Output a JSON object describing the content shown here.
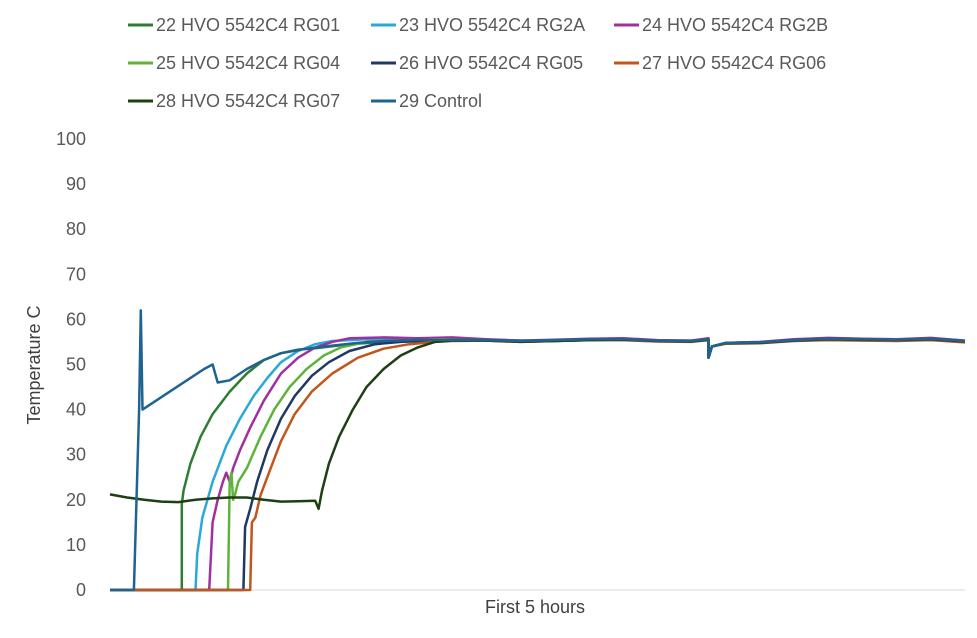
{
  "chart_data": {
    "type": "line",
    "title": "",
    "xlabel": "First 5 hours",
    "ylabel": "Temperature C",
    "xlim": [
      0,
      5
    ],
    "ylim": [
      0,
      100
    ],
    "yticks": [
      0,
      10,
      20,
      30,
      40,
      50,
      60,
      70,
      80,
      90,
      100
    ],
    "grid": false,
    "legend_position": "top",
    "series": [
      {
        "name": "22 HVO 5542C4 RG01",
        "color": "#2e7d32",
        "points": [
          [
            0.0,
            0
          ],
          [
            0.42,
            0
          ],
          [
            0.42,
            19
          ],
          [
            0.43,
            22
          ],
          [
            0.47,
            28
          ],
          [
            0.53,
            34
          ],
          [
            0.6,
            39
          ],
          [
            0.7,
            44
          ],
          [
            0.8,
            48
          ],
          [
            0.9,
            51
          ],
          [
            1.0,
            52.5
          ],
          [
            1.1,
            53.3
          ],
          [
            1.2,
            53.6
          ],
          [
            1.4,
            54.5
          ],
          [
            1.6,
            55
          ],
          [
            1.8,
            55.2
          ],
          [
            2.0,
            55.4
          ],
          [
            2.2,
            55.5
          ],
          [
            2.4,
            55.3
          ],
          [
            2.6,
            55.2
          ],
          [
            2.8,
            55.4
          ],
          [
            3.0,
            55.6
          ],
          [
            3.2,
            55.3
          ],
          [
            3.4,
            55.1
          ],
          [
            3.5,
            55.6
          ],
          [
            3.5,
            51.5
          ],
          [
            3.52,
            54
          ],
          [
            3.6,
            54.8
          ],
          [
            3.8,
            54.9
          ],
          [
            4.0,
            55.3
          ],
          [
            4.2,
            55.6
          ],
          [
            4.4,
            55.5
          ],
          [
            4.6,
            55.5
          ],
          [
            4.8,
            55.6
          ],
          [
            5.0,
            55.2
          ]
        ]
      },
      {
        "name": "23 HVO 5542C4 RG2A",
        "color": "#29a9d6",
        "points": [
          [
            0.0,
            0
          ],
          [
            0.5,
            0
          ],
          [
            0.51,
            8
          ],
          [
            0.54,
            16
          ],
          [
            0.6,
            24
          ],
          [
            0.68,
            32
          ],
          [
            0.76,
            38
          ],
          [
            0.84,
            43
          ],
          [
            0.92,
            47
          ],
          [
            1.0,
            50.5
          ],
          [
            1.1,
            53
          ],
          [
            1.2,
            54.5
          ],
          [
            1.3,
            55.2
          ],
          [
            1.5,
            55.6
          ],
          [
            1.7,
            55.5
          ],
          [
            2.0,
            55.6
          ],
          [
            2.2,
            55.5
          ],
          [
            2.4,
            55.3
          ],
          [
            2.6,
            55.4
          ],
          [
            2.8,
            55.6
          ],
          [
            3.0,
            55.7
          ],
          [
            3.2,
            55.3
          ],
          [
            3.4,
            55.3
          ],
          [
            3.5,
            55.7
          ],
          [
            3.5,
            51.5
          ],
          [
            3.52,
            54
          ],
          [
            3.6,
            54.8
          ],
          [
            3.8,
            54.9
          ],
          [
            4.0,
            55.5
          ],
          [
            4.2,
            55.8
          ],
          [
            4.4,
            55.6
          ],
          [
            4.6,
            55.5
          ],
          [
            4.8,
            55.8
          ],
          [
            5.0,
            55.3
          ]
        ]
      },
      {
        "name": "24 HVO 5542C4 RG2B",
        "color": "#a030a0",
        "points": [
          [
            0.0,
            0
          ],
          [
            0.58,
            0
          ],
          [
            0.6,
            15
          ],
          [
            0.63,
            20
          ],
          [
            0.66,
            24
          ],
          [
            0.68,
            26
          ],
          [
            0.7,
            24
          ],
          [
            0.72,
            27
          ],
          [
            0.76,
            31
          ],
          [
            0.82,
            36
          ],
          [
            0.9,
            42
          ],
          [
            1.0,
            48
          ],
          [
            1.1,
            51.5
          ],
          [
            1.2,
            53.8
          ],
          [
            1.3,
            55
          ],
          [
            1.4,
            55.8
          ],
          [
            1.6,
            56
          ],
          [
            1.8,
            55.8
          ],
          [
            2.0,
            56
          ],
          [
            2.2,
            55.6
          ],
          [
            2.4,
            55.3
          ],
          [
            2.6,
            55.5
          ],
          [
            2.8,
            55.7
          ],
          [
            3.0,
            55.8
          ],
          [
            3.2,
            55.4
          ],
          [
            3.4,
            55.3
          ],
          [
            3.5,
            55.8
          ],
          [
            3.5,
            51.5
          ],
          [
            3.52,
            54
          ],
          [
            3.6,
            54.8
          ],
          [
            3.8,
            55
          ],
          [
            4.0,
            55.6
          ],
          [
            4.2,
            55.9
          ],
          [
            4.4,
            55.7
          ],
          [
            4.6,
            55.6
          ],
          [
            4.8,
            55.9
          ],
          [
            5.0,
            55.3
          ]
        ]
      },
      {
        "name": "25 HVO 5542C4 RG04",
        "color": "#5fb33a",
        "points": [
          [
            0.0,
            0
          ],
          [
            0.69,
            0
          ],
          [
            0.7,
            24
          ],
          [
            0.71,
            26
          ],
          [
            0.72,
            20
          ],
          [
            0.73,
            21
          ],
          [
            0.75,
            24
          ],
          [
            0.8,
            27
          ],
          [
            0.88,
            34
          ],
          [
            0.96,
            40
          ],
          [
            1.05,
            45
          ],
          [
            1.15,
            49
          ],
          [
            1.25,
            52
          ],
          [
            1.35,
            53.8
          ],
          [
            1.5,
            55
          ],
          [
            1.7,
            55.4
          ],
          [
            2.0,
            55.6
          ],
          [
            2.2,
            55.4
          ],
          [
            2.4,
            55.2
          ],
          [
            2.6,
            55.4
          ],
          [
            2.8,
            55.6
          ],
          [
            3.0,
            55.6
          ],
          [
            3.2,
            55.3
          ],
          [
            3.4,
            55.2
          ],
          [
            3.5,
            55.6
          ],
          [
            3.5,
            51.5
          ],
          [
            3.52,
            54
          ],
          [
            3.6,
            54.8
          ],
          [
            3.8,
            54.9
          ],
          [
            4.0,
            55.4
          ],
          [
            4.2,
            55.7
          ],
          [
            4.4,
            55.6
          ],
          [
            4.6,
            55.5
          ],
          [
            4.8,
            55.7
          ],
          [
            5.0,
            55.2
          ]
        ]
      },
      {
        "name": "26 HVO 5542C4 RG05",
        "color": "#1f3864",
        "points": [
          [
            0.0,
            0
          ],
          [
            0.78,
            0
          ],
          [
            0.79,
            14
          ],
          [
            0.82,
            18
          ],
          [
            0.86,
            24
          ],
          [
            0.92,
            31
          ],
          [
            1.0,
            38
          ],
          [
            1.08,
            43
          ],
          [
            1.18,
            47.5
          ],
          [
            1.28,
            50.5
          ],
          [
            1.4,
            53
          ],
          [
            1.55,
            54.5
          ],
          [
            1.7,
            55
          ],
          [
            1.9,
            55.3
          ],
          [
            2.0,
            55.5
          ],
          [
            2.2,
            55.4
          ],
          [
            2.4,
            55.2
          ],
          [
            2.6,
            55.4
          ],
          [
            2.8,
            55.6
          ],
          [
            3.0,
            55.6
          ],
          [
            3.2,
            55.3
          ],
          [
            3.4,
            55.2
          ],
          [
            3.5,
            55.6
          ],
          [
            3.5,
            51.5
          ],
          [
            3.52,
            54
          ],
          [
            3.6,
            54.8
          ],
          [
            3.8,
            54.9
          ],
          [
            4.0,
            55.4
          ],
          [
            4.2,
            55.7
          ],
          [
            4.4,
            55.6
          ],
          [
            4.6,
            55.5
          ],
          [
            4.8,
            55.7
          ],
          [
            5.0,
            55.2
          ]
        ]
      },
      {
        "name": "27 HVO 5542C4 RG06",
        "color": "#c0561b",
        "points": [
          [
            0.0,
            0
          ],
          [
            0.82,
            0
          ],
          [
            0.83,
            15
          ],
          [
            0.85,
            16
          ],
          [
            0.88,
            21
          ],
          [
            0.94,
            27
          ],
          [
            1.0,
            33
          ],
          [
            1.08,
            39
          ],
          [
            1.18,
            44
          ],
          [
            1.3,
            48
          ],
          [
            1.45,
            51.5
          ],
          [
            1.6,
            53.5
          ],
          [
            1.75,
            54.5
          ],
          [
            1.9,
            55
          ],
          [
            2.0,
            55.2
          ],
          [
            2.2,
            55.3
          ],
          [
            2.4,
            55
          ],
          [
            2.6,
            55.2
          ],
          [
            2.8,
            55.4
          ],
          [
            3.0,
            55.4
          ],
          [
            3.2,
            55.1
          ],
          [
            3.4,
            55
          ],
          [
            3.5,
            55.4
          ],
          [
            3.5,
            51.5
          ],
          [
            3.52,
            54
          ],
          [
            3.6,
            54.6
          ],
          [
            3.8,
            54.7
          ],
          [
            4.0,
            55.2
          ],
          [
            4.2,
            55.4
          ],
          [
            4.4,
            55.3
          ],
          [
            4.6,
            55.2
          ],
          [
            4.8,
            55.4
          ],
          [
            5.0,
            54.9
          ]
        ]
      },
      {
        "name": "28 HVO 5542C4 RG07",
        "color": "#1e3f14",
        "points": [
          [
            0.0,
            21.2
          ],
          [
            0.1,
            20.5
          ],
          [
            0.2,
            20
          ],
          [
            0.3,
            19.6
          ],
          [
            0.4,
            19.5
          ],
          [
            0.5,
            20
          ],
          [
            0.6,
            20.3
          ],
          [
            0.7,
            20.5
          ],
          [
            0.8,
            20.5
          ],
          [
            0.9,
            20
          ],
          [
            1.0,
            19.6
          ],
          [
            1.1,
            19.7
          ],
          [
            1.2,
            19.8
          ],
          [
            1.22,
            18
          ],
          [
            1.24,
            22
          ],
          [
            1.28,
            28
          ],
          [
            1.34,
            34
          ],
          [
            1.42,
            40
          ],
          [
            1.5,
            45
          ],
          [
            1.6,
            49
          ],
          [
            1.7,
            52
          ],
          [
            1.8,
            53.8
          ],
          [
            1.9,
            55
          ],
          [
            2.0,
            55.3
          ],
          [
            2.2,
            55.3
          ],
          [
            2.4,
            55
          ],
          [
            2.6,
            55.2
          ],
          [
            2.8,
            55.4
          ],
          [
            3.0,
            55.5
          ],
          [
            3.2,
            55.2
          ],
          [
            3.4,
            55.1
          ],
          [
            3.5,
            55.5
          ],
          [
            3.5,
            51.5
          ],
          [
            3.52,
            54
          ],
          [
            3.6,
            54.7
          ],
          [
            3.8,
            54.8
          ],
          [
            4.0,
            55.3
          ],
          [
            4.2,
            55.6
          ],
          [
            4.4,
            55.5
          ],
          [
            4.6,
            55.4
          ],
          [
            4.8,
            55.6
          ],
          [
            5.0,
            55.1
          ]
        ]
      },
      {
        "name": "29 Control",
        "color": "#1f6391",
        "points": [
          [
            0.0,
            0
          ],
          [
            0.14,
            0
          ],
          [
            0.17,
            40
          ],
          [
            0.18,
            62
          ],
          [
            0.19,
            40
          ],
          [
            0.25,
            41.5
          ],
          [
            0.35,
            44
          ],
          [
            0.45,
            46.5
          ],
          [
            0.55,
            49
          ],
          [
            0.6,
            50
          ],
          [
            0.63,
            46
          ],
          [
            0.7,
            46.5
          ],
          [
            0.8,
            49
          ],
          [
            0.9,
            51
          ],
          [
            1.0,
            52.5
          ],
          [
            1.15,
            53.5
          ],
          [
            1.3,
            54.2
          ],
          [
            1.45,
            54.8
          ],
          [
            1.6,
            55.2
          ],
          [
            1.8,
            55.5
          ],
          [
            2.0,
            55.4
          ],
          [
            2.2,
            55.4
          ],
          [
            2.4,
            55.2
          ],
          [
            2.6,
            55.4
          ],
          [
            2.8,
            55.6
          ],
          [
            3.0,
            55.6
          ],
          [
            3.2,
            55.3
          ],
          [
            3.4,
            55.2
          ],
          [
            3.5,
            55.6
          ],
          [
            3.5,
            51.5
          ],
          [
            3.52,
            54
          ],
          [
            3.6,
            54.8
          ],
          [
            3.8,
            54.9
          ],
          [
            4.0,
            55.4
          ],
          [
            4.2,
            55.7
          ],
          [
            4.4,
            55.6
          ],
          [
            4.6,
            55.5
          ],
          [
            4.8,
            55.7
          ],
          [
            5.0,
            55.2
          ]
        ]
      }
    ]
  }
}
